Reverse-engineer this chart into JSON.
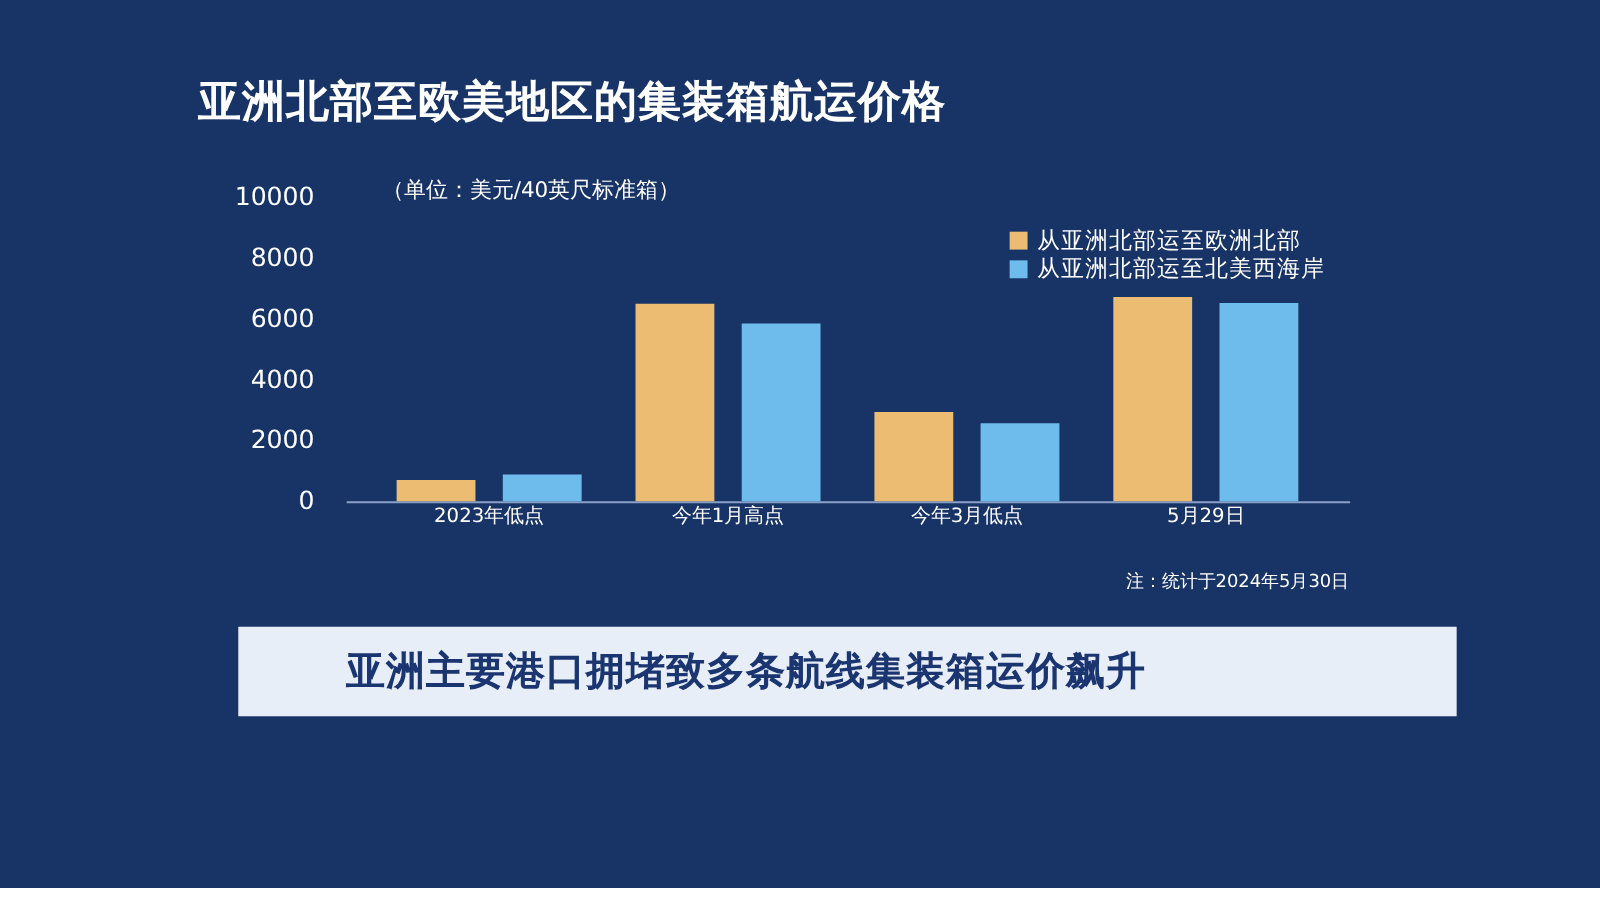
{
  "chart_data": {
    "type": "bar",
    "title": "亚洲北部至欧美地区的集装箱航运价格",
    "categories": [
      "2023年低点",
      "今年1月高点",
      "今年3月低点",
      "5月29日"
    ],
    "series": [
      {
        "name": "从亚洲北部运至欧洲北部",
        "color": "#ecbc72",
        "values": [
          700,
          6490,
          2930,
          6710
        ]
      },
      {
        "name": "从亚洲北部运至北美西海岸",
        "color": "#6ebcec",
        "values": [
          880,
          5840,
          2560,
          6510
        ]
      }
    ],
    "ylim": [
      0,
      10000
    ],
    "yticks": [
      0,
      2000,
      4000,
      6000,
      8000,
      10000
    ],
    "grid": false,
    "legend": "top right",
    "annotations": [
      "（单位：美元/40英尺标准箱）",
      "注：统计于2024年5月30日",
      "亚洲主要港口拥堵致多条航线集装箱运价飙升"
    ]
  }
}
